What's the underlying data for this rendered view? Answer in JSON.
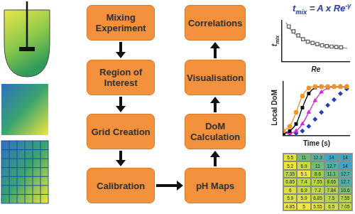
{
  "flow": {
    "steps": [
      "Mixing Experiment",
      "Region of Interest",
      "Grid Creation",
      "Calibration",
      "pH Maps",
      "DoM Calculation",
      "Visualisation",
      "Correlations"
    ]
  },
  "chart_data": [
    {
      "type": "scatter",
      "formula": {
        "text": "t",
        "sub": "mix",
        "middle": " = A x Re",
        "sup": "-γ"
      },
      "y_label": {
        "text": "t",
        "sub": "mix"
      },
      "x_label": "Re",
      "x": [
        0.6,
        1,
        1.7,
        2.4,
        3.1,
        3.8,
        4.5,
        5.2,
        5.9,
        6.6,
        7.3,
        8,
        8.7,
        9.6
      ],
      "xlim": [
        0,
        10
      ],
      "ylim": [
        0,
        10
      ],
      "tick_labels": false,
      "grid": false,
      "series": [
        {
          "color": "#555555",
          "marker": "open_square",
          "line_style": "none",
          "values": [
            null,
            8.6,
            7.4,
            6.4,
            5.5,
            4.9,
            4.6,
            4.3,
            4.0,
            3.8,
            3.7,
            3.6,
            3.5,
            null
          ]
        },
        {
          "color": "#8c8c8c",
          "marker": "none",
          "line_style": "solid",
          "values": [
            9.6,
            8.4,
            7.1,
            6.2,
            5.5,
            5.0,
            4.6,
            4.3,
            4.05,
            3.85,
            3.7,
            3.55,
            3.45,
            3.3
          ]
        }
      ]
    },
    {
      "type": "line",
      "y_label": "Local DoM",
      "x_label": "Time (s)",
      "x": [
        0,
        1,
        2,
        3,
        4,
        5,
        6,
        7,
        8,
        9,
        10
      ],
      "xlim": [
        0,
        10.5
      ],
      "ylim": [
        -0.05,
        1.1
      ],
      "tick_labels": false,
      "grid": false,
      "series": [
        {
          "color": "#f7941d",
          "marker": "circle",
          "line_style": "solid",
          "values": [
            0.05,
            0.15,
            0.45,
            0.8,
            0.97,
            1,
            1,
            1,
            1,
            1,
            1
          ]
        },
        {
          "color": "#000000",
          "marker": "square",
          "line_style": "solid",
          "values": [
            0,
            0.05,
            0.2,
            0.55,
            0.85,
            0.98,
            1,
            1,
            1,
            1,
            1
          ]
        },
        {
          "color": "#e020e0",
          "marker": "triangle",
          "line_style": "solid",
          "values": [
            0,
            0,
            0.05,
            0.2,
            0.45,
            0.7,
            0.88,
            0.97,
            1,
            1,
            1
          ]
        },
        {
          "color": "#1f3fbf",
          "marker": "diamond",
          "line_style": "none",
          "values": [
            0,
            0,
            0,
            0.05,
            0.15,
            0.3,
            0.45,
            0.6,
            0.72,
            0.85,
            0.95
          ]
        }
      ]
    }
  ],
  "table": {
    "rows": [
      [
        5.5,
        11,
        12.3,
        14,
        14
      ],
      [
        5.2,
        6.9,
        11,
        12.7,
        14
      ],
      [
        7.35,
        5.1,
        8.6,
        11.1,
        12.7
      ],
      [
        6.85,
        7.4,
        7.55,
        8.65,
        12.7
      ],
      [
        6,
        6.9,
        7.2,
        7.84,
        10.6
      ],
      [
        5.9,
        5.9,
        6.85,
        7.5,
        7.55
      ],
      [
        4.85,
        5,
        5.55,
        6.5,
        7.05
      ]
    ]
  }
}
